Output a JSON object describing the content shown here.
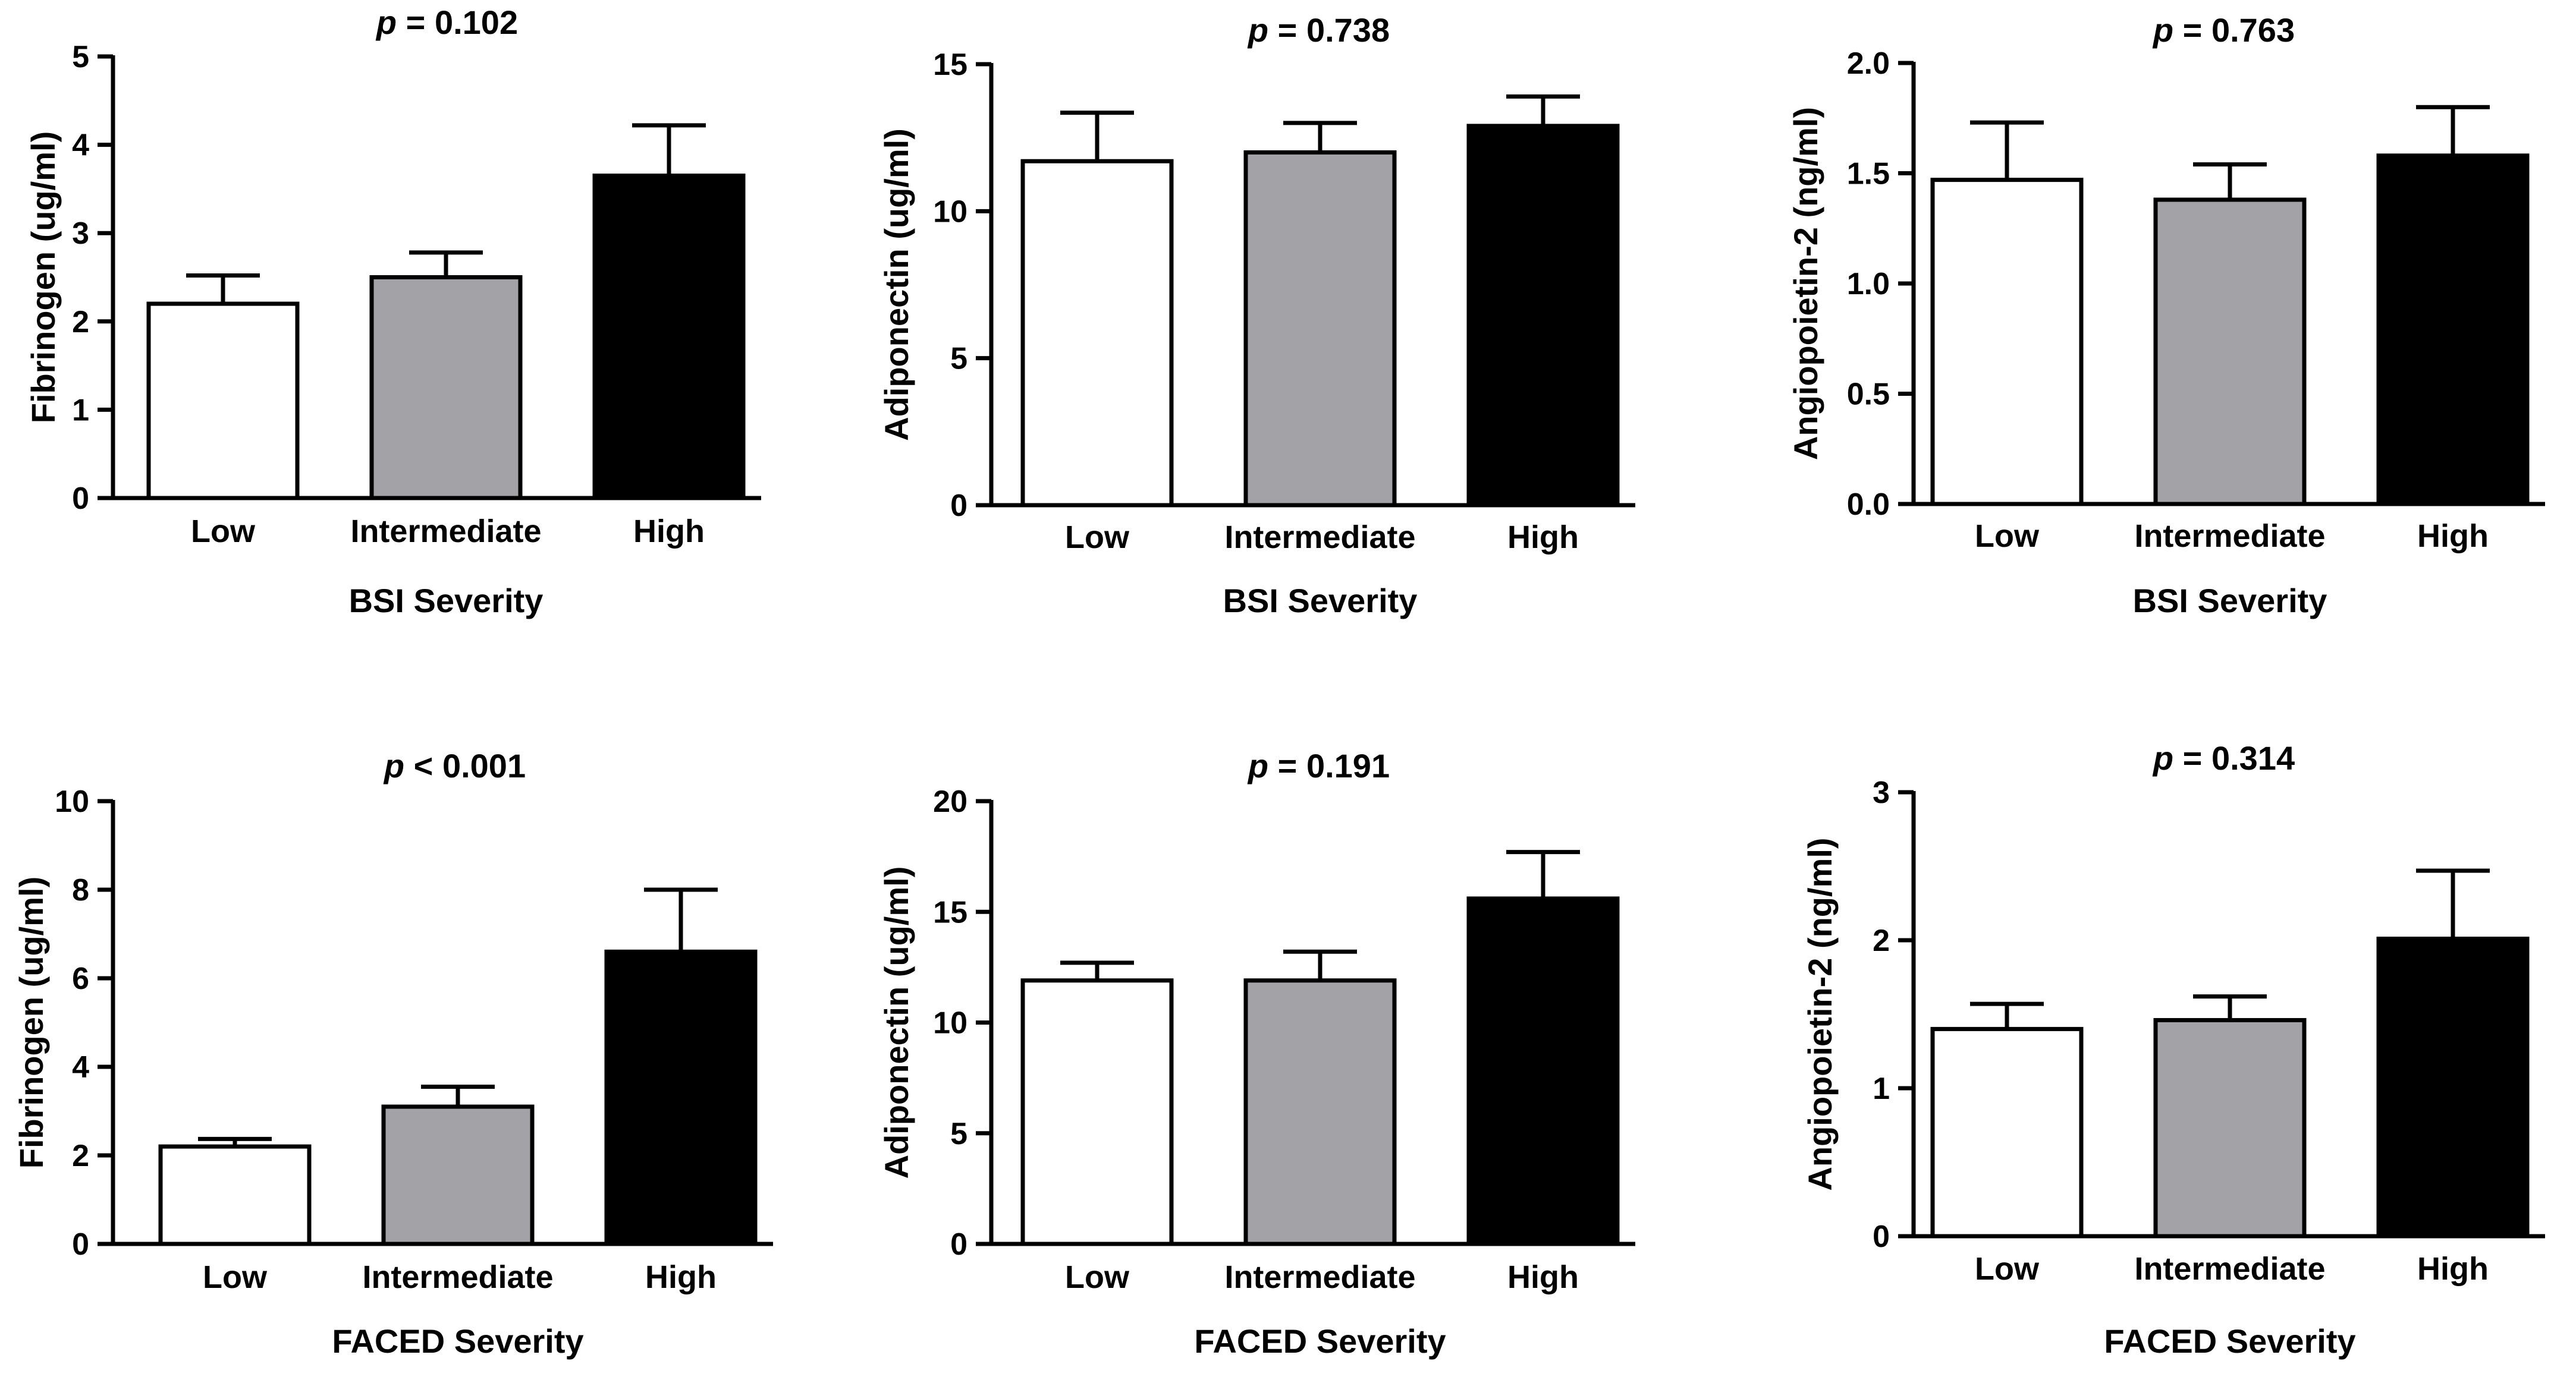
{
  "colors": {
    "low": "#ffffff",
    "intermediate": "#a3a3a7",
    "high": "#000000",
    "axis": "#000000"
  },
  "chart_data": [
    {
      "type": "bar",
      "title_p": "p",
      "title_rest": " = 0.102",
      "title": "p = 0.102",
      "categories": [
        "Low",
        "Intermediate",
        "High"
      ],
      "values": [
        2.2,
        2.5,
        3.65
      ],
      "errors": [
        0.32,
        0.28,
        0.57
      ],
      "ylim": [
        0,
        5
      ],
      "yticks": [
        0,
        1,
        2,
        3,
        4,
        5
      ],
      "ytick_labels": [
        "0",
        "1",
        "2",
        "3",
        "4",
        "5"
      ],
      "ylabel": "Fibrinogen (ug/ml)",
      "xlabel": "BSI Severity"
    },
    {
      "type": "bar",
      "title_p": "p",
      "title_rest": " = 0.738",
      "title": "p = 0.738",
      "categories": [
        "Low",
        "Intermediate",
        "High"
      ],
      "values": [
        11.7,
        12.0,
        12.9
      ],
      "errors": [
        1.65,
        1.0,
        1.0
      ],
      "ylim": [
        0,
        15
      ],
      "yticks": [
        0,
        5,
        10,
        15
      ],
      "ytick_labels": [
        "0",
        "5",
        "10",
        "15"
      ],
      "ylabel": "Adiponectin (ug/ml)",
      "xlabel": "BSI Severity"
    },
    {
      "type": "bar",
      "title_p": "p",
      "title_rest": " = 0.763",
      "title": "p = 0.763",
      "categories": [
        "Low",
        "Intermediate",
        "High"
      ],
      "values": [
        1.47,
        1.38,
        1.58
      ],
      "errors": [
        0.26,
        0.16,
        0.22
      ],
      "ylim": [
        0,
        2
      ],
      "yticks": [
        0,
        0.5,
        1,
        1.5,
        2
      ],
      "ytick_labels": [
        "0.0",
        "0.5",
        "1.0",
        "1.5",
        "2.0"
      ],
      "ylabel": "Angiopoietin-2 (ng/ml)",
      "xlabel": "BSI Severity"
    },
    {
      "type": "bar",
      "title_p": "p",
      "title_rest": " < 0.001",
      "title": "p < 0.001",
      "categories": [
        "Low",
        "Intermediate",
        "High"
      ],
      "values": [
        2.2,
        3.1,
        6.6
      ],
      "errors": [
        0.17,
        0.45,
        1.4
      ],
      "ylim": [
        0,
        10
      ],
      "yticks": [
        0,
        2,
        4,
        6,
        8,
        10
      ],
      "ytick_labels": [
        "0",
        "2",
        "4",
        "6",
        "8",
        "10"
      ],
      "ylabel": "Fibrinogen (ug/ml)",
      "xlabel": "FACED Severity"
    },
    {
      "type": "bar",
      "title_p": "p",
      "title_rest": " = 0.191",
      "title": "p = 0.191",
      "categories": [
        "Low",
        "Intermediate",
        "High"
      ],
      "values": [
        11.9,
        11.9,
        15.6
      ],
      "errors": [
        0.8,
        1.3,
        2.1
      ],
      "ylim": [
        0,
        20
      ],
      "yticks": [
        0,
        5,
        10,
        15,
        20
      ],
      "ytick_labels": [
        "0",
        "5",
        "10",
        "15",
        "20"
      ],
      "ylabel": "Adiponectin (ug/ml)",
      "xlabel": "FACED Severity"
    },
    {
      "type": "bar",
      "title_p": "p",
      "title_rest": " = 0.314",
      "title": "p = 0.314",
      "categories": [
        "Low",
        "Intermediate",
        "High"
      ],
      "values": [
        1.4,
        1.46,
        2.01
      ],
      "errors": [
        0.17,
        0.16,
        0.46
      ],
      "ylim": [
        0,
        3
      ],
      "yticks": [
        0,
        1,
        2,
        3
      ],
      "ytick_labels": [
        "0",
        "1",
        "2",
        "3"
      ],
      "ylabel": "Angiopoietin-2 (ng/ml)",
      "xlabel": "FACED Severity"
    }
  ]
}
